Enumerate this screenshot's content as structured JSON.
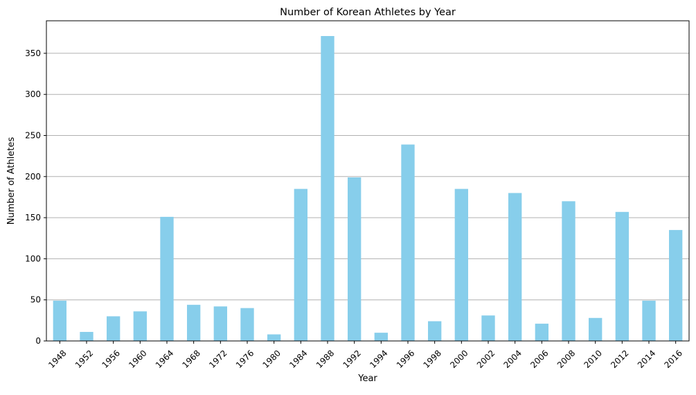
{
  "chart_data": {
    "type": "bar",
    "title": "Number of Korean Athletes by Year",
    "xlabel": "Year",
    "ylabel": "Number of Athletes",
    "categories": [
      "1948",
      "1952",
      "1956",
      "1960",
      "1964",
      "1968",
      "1972",
      "1976",
      "1980",
      "1984",
      "1988",
      "1992",
      "1994",
      "1996",
      "1998",
      "2000",
      "2002",
      "2004",
      "2006",
      "2008",
      "2010",
      "2012",
      "2014",
      "2016"
    ],
    "values": [
      49,
      11,
      30,
      36,
      151,
      44,
      42,
      40,
      8,
      185,
      371,
      199,
      10,
      239,
      24,
      185,
      31,
      180,
      21,
      170,
      28,
      157,
      49,
      135
    ],
    "ylim": [
      0,
      389.55
    ],
    "yticks": [
      0,
      50,
      100,
      150,
      200,
      250,
      300,
      350
    ],
    "grid": "y",
    "bar_color": "#87CEEB",
    "grid_color": "#b0b0b0",
    "axis_color": "#000000"
  }
}
